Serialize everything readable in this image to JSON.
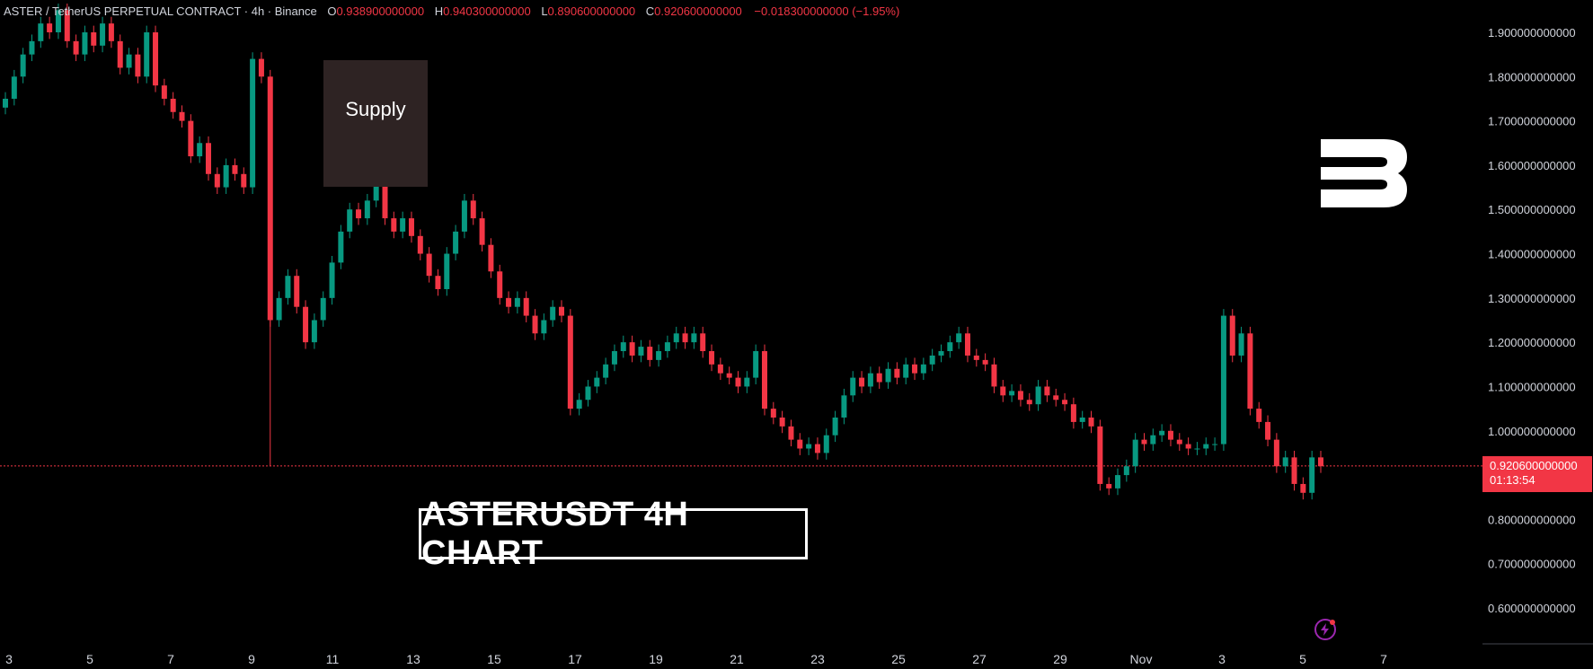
{
  "header": {
    "symbol": "ASTER / TetherUS PERPETUAL CONTRACT · 4h · Binance",
    "open_label": "O",
    "open": "0.938900000000",
    "high_label": "H",
    "high": "0.940300000000",
    "low_label": "L",
    "low": "0.890600000000",
    "close_label": "C",
    "close": "0.920600000000",
    "change": "−0.018300000000 (−1.95%)"
  },
  "annotations": {
    "supply_label": "Supply",
    "chart_title": "ASTERUSDT 4H CHART"
  },
  "price_tag": {
    "price": "0.920600000000",
    "countdown": "01:13:54"
  },
  "colors": {
    "up": "#089981",
    "down": "#f23645",
    "background": "#000000",
    "supply_zone": "#2e2323"
  },
  "icons": [
    "brand-logo-icon",
    "lightning-icon"
  ],
  "chart_data": {
    "type": "candlestick",
    "title": "ASTERUSDT 4H CHART",
    "ylim": [
      0.55,
      1.95
    ],
    "y_ticks": [
      "1.900000000000",
      "1.800000000000",
      "1.700000000000",
      "1.600000000000",
      "1.500000000000",
      "1.400000000000",
      "1.300000000000",
      "1.200000000000",
      "1.100000000000",
      "1.000000000000",
      "0.800000000000",
      "0.700000000000",
      "0.600000000000"
    ],
    "x_ticks": [
      "3",
      "5",
      "7",
      "9",
      "11",
      "13",
      "15",
      "17",
      "19",
      "21",
      "23",
      "25",
      "27",
      "29",
      "Nov",
      "3",
      "5",
      "7"
    ],
    "current_price": 0.9206,
    "supply_zone": {
      "from": 1.55,
      "to": 1.84
    },
    "series": [
      {
        "values": [
          1.75,
          1.8,
          1.85,
          1.88,
          1.92,
          1.9,
          1.95,
          1.88,
          1.85,
          1.9,
          1.87,
          1.92,
          1.88,
          1.82,
          1.85,
          1.8,
          1.9,
          1.78,
          1.75,
          1.72,
          1.7,
          1.62,
          1.65,
          1.58,
          1.55,
          1.6,
          1.58,
          1.55,
          1.84,
          1.8,
          1.25,
          1.3,
          1.35,
          1.28,
          1.2,
          1.25,
          1.3,
          1.38,
          1.45,
          1.5,
          1.48,
          1.52,
          1.56,
          1.48,
          1.45,
          1.48,
          1.44,
          1.4,
          1.35,
          1.32,
          1.4,
          1.45,
          1.52,
          1.48,
          1.42,
          1.36,
          1.3,
          1.28,
          1.3,
          1.26,
          1.22,
          1.25,
          1.28,
          1.26,
          1.05,
          1.07,
          1.1,
          1.12,
          1.15,
          1.18,
          1.2,
          1.17,
          1.19,
          1.16,
          1.18,
          1.2,
          1.22,
          1.2,
          1.22,
          1.18,
          1.15,
          1.13,
          1.12,
          1.1,
          1.12,
          1.18,
          1.05,
          1.03,
          1.01,
          0.98,
          0.96,
          0.97,
          0.95,
          0.99,
          1.03,
          1.08,
          1.12,
          1.1,
          1.13,
          1.11,
          1.14,
          1.12,
          1.15,
          1.13,
          1.15,
          1.17,
          1.18,
          1.2,
          1.22,
          1.17,
          1.16,
          1.15,
          1.1,
          1.08,
          1.09,
          1.07,
          1.06,
          1.1,
          1.08,
          1.07,
          1.06,
          1.02,
          1.03,
          1.01,
          0.88,
          0.87,
          0.9,
          0.92,
          0.98,
          0.97,
          0.99,
          1.0,
          0.98,
          0.97,
          0.96,
          0.96,
          0.97,
          0.97,
          1.26,
          1.17,
          1.22,
          1.05,
          1.02,
          0.98,
          0.92,
          0.94,
          0.88,
          0.86,
          0.94,
          0.92
        ]
      }
    ]
  }
}
